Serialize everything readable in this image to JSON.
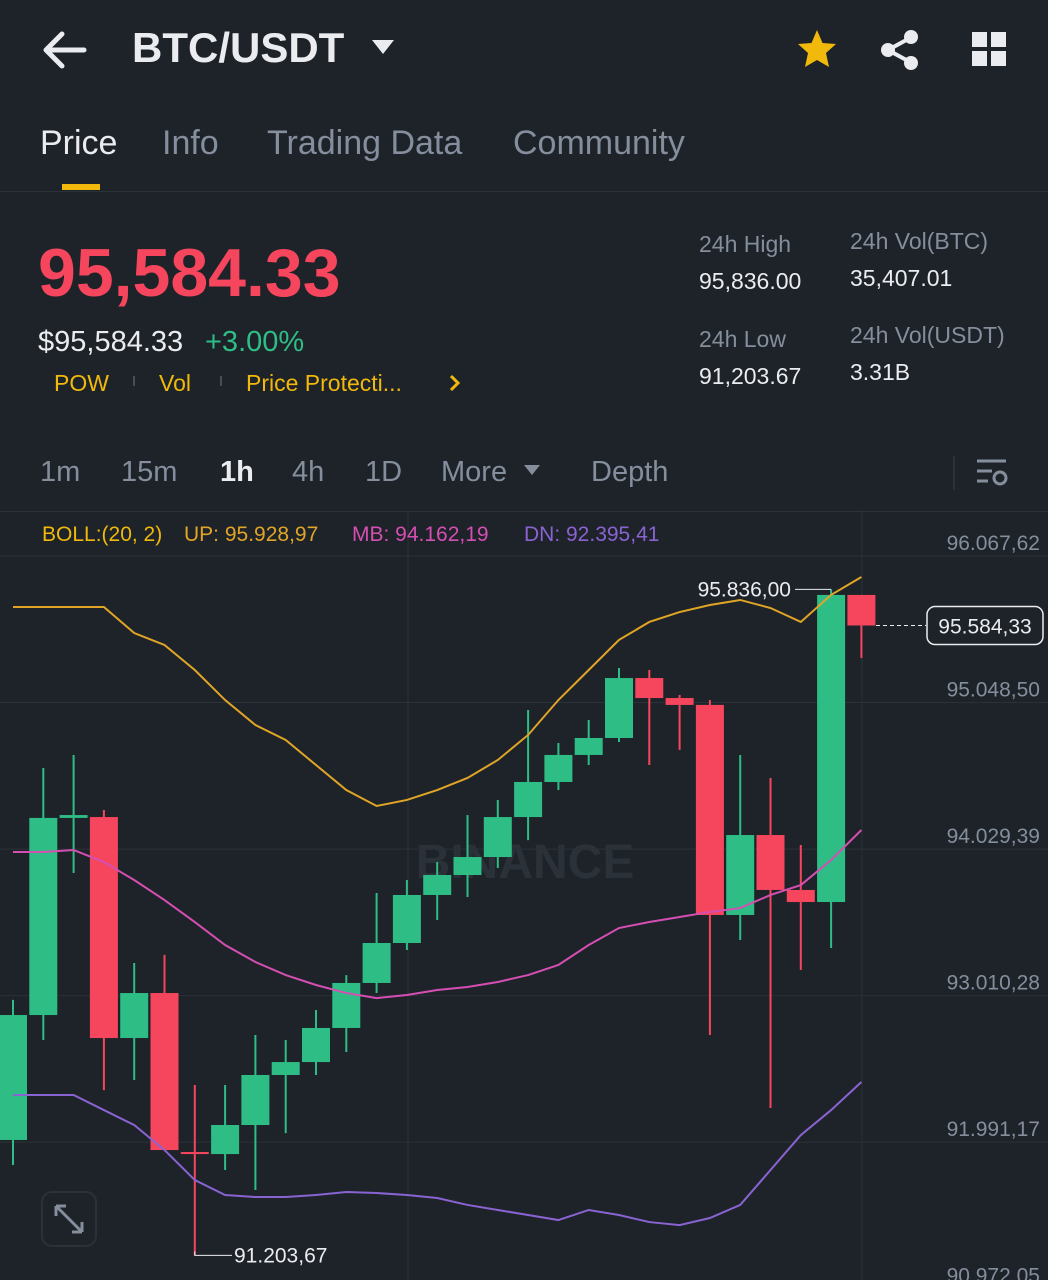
{
  "header": {
    "title": "BTC/USDT"
  },
  "tabs": [
    "Price",
    "Info",
    "Trading Data",
    "Community"
  ],
  "ticker": {
    "price": "95,584.33",
    "fiat_price": "$95,584.33",
    "change": "+3.00%",
    "tags": [
      "POW",
      "Vol",
      "Price Protecti..."
    ]
  },
  "stats": [
    {
      "label": "24h High",
      "value": "95,836.00"
    },
    {
      "label": "24h Vol(BTC)",
      "value": "35,407.01"
    },
    {
      "label": "24h Low",
      "value": "91,203.67"
    },
    {
      "label": "24h Vol(USDT)",
      "value": "3.31B"
    }
  ],
  "intervals": [
    "1m",
    "15m",
    "1h",
    "4h",
    "1D",
    "More",
    "Depth"
  ],
  "chart_data": {
    "type": "candlestick",
    "indicator": "BOLL:(20, 2)",
    "watermark": "BINANCE",
    "up_color": "#2ebd85",
    "down_color": "#f6465d",
    "open": [
      92006,
      92875,
      94246,
      94252,
      92715,
      93028,
      91922,
      91908,
      92110,
      92458,
      92548,
      92785,
      93098,
      93376,
      93710,
      93849,
      93974,
      94252,
      94496,
      94684,
      94802,
      95219,
      95080,
      95032,
      93571,
      94127,
      93745,
      93661,
      95797
    ],
    "high": [
      92980,
      94593,
      94684,
      94301,
      93237,
      93293,
      92388,
      92388,
      92736,
      92701,
      92910,
      93153,
      93724,
      93814,
      93939,
      94266,
      94371,
      94997,
      94767,
      94927,
      95289,
      95275,
      95101,
      95066,
      94684,
      94524,
      94058,
      95836,
      95797
    ],
    "low": [
      91832,
      92701,
      93863,
      92353,
      92423,
      91936,
      91203.67,
      91797,
      91658,
      92054,
      92458,
      92618,
      93028,
      93327,
      93536,
      93696,
      93898,
      94092,
      94440,
      94614,
      94774,
      94614,
      94719,
      92736,
      93397,
      92228,
      93188,
      93341,
      95358
    ],
    "close": [
      92875,
      94246,
      94266,
      92715,
      93028,
      91936,
      91908,
      92110,
      92458,
      92548,
      92785,
      93098,
      93376,
      93710,
      93849,
      93974,
      94252,
      94496,
      94684,
      94802,
      95219,
      95080,
      95032,
      93571,
      94127,
      93745,
      93661,
      95797,
      95584.33
    ],
    "series": [
      {
        "name": "UP: 95.928,97",
        "color": "#e0a526",
        "values": [
          95713,
          95713,
          95713,
          95713,
          95532,
          95449,
          95275,
          95066,
          94892,
          94788,
          94614,
          94440,
          94329,
          94371,
          94440,
          94524,
          94649,
          94823,
          95066,
          95275,
          95484,
          95609,
          95678,
          95727,
          95762,
          95706,
          95609,
          95797,
          95922
        ]
      },
      {
        "name": "MB: 94.162,19",
        "color": "#d54fb3",
        "values": [
          94009,
          94009,
          94023,
          93939,
          93814,
          93675,
          93522,
          93362,
          93244,
          93153,
          93084,
          93028,
          92993,
          93014,
          93049,
          93070,
          93105,
          93153,
          93223,
          93362,
          93480,
          93522,
          93557,
          93592,
          93619,
          93710,
          93779,
          93953,
          94162
        ]
      },
      {
        "name": "DN: 92.395,41",
        "color": "#8a63d2",
        "values": [
          92319,
          92319,
          92319,
          92214,
          92110,
          91936,
          91727,
          91623,
          91609,
          91609,
          91623,
          91644,
          91637,
          91623,
          91602,
          91554,
          91519,
          91484,
          91449,
          91519,
          91484,
          91435,
          91414,
          91463,
          91554,
          91797,
          92040,
          92214,
          92409
        ]
      }
    ],
    "ylim": [
      91032,
      96353
    ],
    "yticks": [
      {
        "value": 96067.62,
        "label": "96.067,62"
      },
      {
        "value": 95048.5,
        "label": "95.048,50"
      },
      {
        "value": 94029.39,
        "label": "94.029,39"
      },
      {
        "value": 93010.28,
        "label": "93.010,28"
      },
      {
        "value": 91991.17,
        "label": "91.991,17"
      },
      {
        "value": 90972.05,
        "label": "90.972,05"
      }
    ],
    "grid": true,
    "high_label": {
      "value": 95836.0,
      "label": "95.836,00"
    },
    "low_label": {
      "value": 91203.67,
      "label": "91.203,67"
    },
    "last_price": {
      "value": 95584.33,
      "label": "95.584,33"
    }
  }
}
